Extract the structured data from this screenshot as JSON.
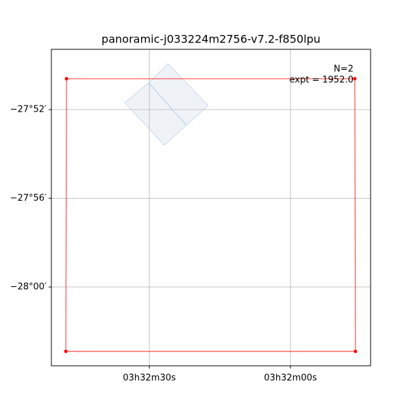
{
  "chart_data": {
    "type": "footprint",
    "title": "panoramic-j033224m2756-v7.2-f850lpu",
    "xlim": [
      53.2118,
      52.929
    ],
    "ylim": [
      -28.0592,
      -27.8214
    ],
    "xticks": [
      {
        "value": 53.125,
        "label": "03h32m30s"
      },
      {
        "value": 53.0,
        "label": "03h32m00s"
      }
    ],
    "yticks": [
      {
        "value": -27.8667,
        "label": "−27°52′"
      },
      {
        "value": -27.9333,
        "label": "−27°56′"
      },
      {
        "value": -28.0,
        "label": "−28°00′"
      }
    ],
    "grid": true,
    "outline": {
      "color": "#ff0000",
      "x": [
        53.1984,
        52.943,
        52.9424,
        53.199
      ],
      "y": [
        -27.8435,
        -27.8435,
        -28.0484,
        -28.0484
      ]
    },
    "footprints": [
      {
        "color": "#b0c4de",
        "x": [
          53.1468,
          53.1256,
          53.0922,
          53.1117
        ],
        "y": [
          -27.8615,
          -27.8466,
          -27.8785,
          -27.8934
        ]
      },
      {
        "color": "#b0c4de",
        "x": [
          53.1256,
          53.1086,
          53.0728,
          53.0922
        ],
        "y": [
          -27.8466,
          -27.8322,
          -27.8636,
          -27.8785
        ]
      }
    ],
    "annotations": [
      "N=2",
      "expt = 1952.0"
    ]
  }
}
